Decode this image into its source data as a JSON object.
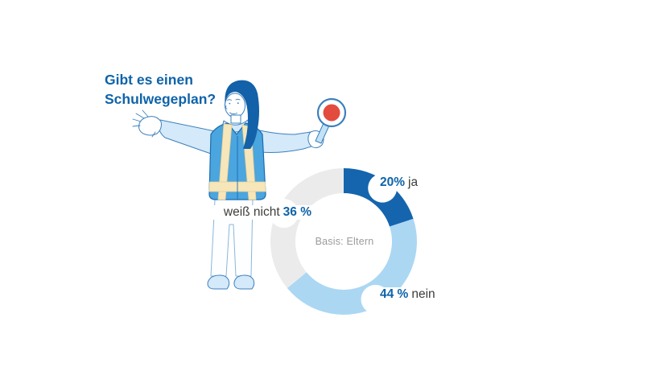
{
  "title": {
    "line1": "Gibt es einen",
    "line2": "Schulwegeplan?"
  },
  "chart_data": {
    "type": "donut",
    "title": "Gibt es einen Schulwegeplan?",
    "center_label": "Basis: Eltern",
    "unit": "percent",
    "start_angle_deg": 0,
    "direction": "clockwise",
    "slices": [
      {
        "label": "ja",
        "value": 20,
        "pct_label": "20%",
        "color": "#1465ad"
      },
      {
        "label": "nein",
        "value": 44,
        "pct_label": "44 %",
        "color": "#abd7f3"
      },
      {
        "label": "weiß nicht",
        "value": 36,
        "pct_label": "36 %",
        "color": "#ebebeb"
      }
    ]
  },
  "illustration": {
    "name": "crossing-guard-with-stop-paddle"
  },
  "colors": {
    "accent": "#0e63a9",
    "label-word": "#3d3d3b",
    "center-text": "#9b9b9b",
    "vest": "#4ba5de",
    "vest-outline": "#1a6cb0",
    "stripe": "#f6e6ba",
    "stripe-outline": "#e4cf97",
    "sleeve": "#d4e9f9",
    "outline": "#3c80bd",
    "hair": "#1261a9",
    "paddle-red": "#e34b3f",
    "pants-outline": "#8ab6da",
    "skin": "#ffffff"
  }
}
